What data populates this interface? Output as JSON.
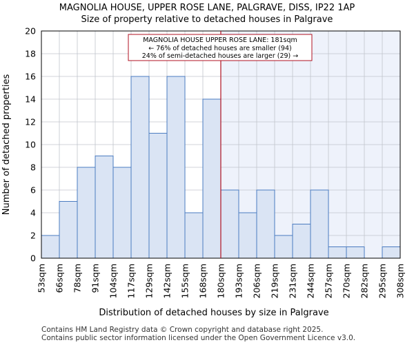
{
  "chart_data": {
    "type": "bar",
    "title": "MAGNOLIA HOUSE, UPPER ROSE LANE, PALGRAVE, DISS, IP22 1AP",
    "subtitle": "Size of property relative to detached houses in Palgrave",
    "xlabel": "Distribution of detached houses by size in Palgrave",
    "ylabel": "Number of detached properties",
    "bin_edges": [
      53,
      66,
      78,
      91,
      104,
      117,
      129,
      142,
      155,
      168,
      180,
      193,
      206,
      219,
      231,
      244,
      257,
      270,
      282,
      295,
      308
    ],
    "tick_labels": [
      "53sqm",
      "66sqm",
      "78sqm",
      "91sqm",
      "104sqm",
      "117sqm",
      "129sqm",
      "142sqm",
      "155sqm",
      "168sqm",
      "180sqm",
      "193sqm",
      "206sqm",
      "219sqm",
      "231sqm",
      "244sqm",
      "257sqm",
      "270sqm",
      "282sqm",
      "295sqm",
      "308sqm"
    ],
    "values": [
      2,
      5,
      8,
      9,
      8,
      16,
      11,
      16,
      4,
      14,
      6,
      4,
      6,
      2,
      3,
      6,
      1,
      1,
      0,
      1
    ],
    "yticks": [
      0,
      2,
      4,
      6,
      8,
      10,
      12,
      14,
      16,
      18,
      20
    ],
    "ylim": [
      0,
      20
    ],
    "marker": {
      "value_index": 10,
      "line1": "MAGNOLIA HOUSE UPPER ROSE LANE: 181sqm",
      "line2": "← 76% of detached houses are smaller (94)",
      "line3": "24% of semi-detached houses are larger (29) →"
    },
    "colors": {
      "bar_fill": "#dae4f4",
      "bar_edge": "#4a7bc0",
      "marker_line": "#b01020",
      "shade": "#eef2fb",
      "grid": "#c0c4cc"
    }
  },
  "footer": {
    "line1": "Contains HM Land Registry data © Crown copyright and database right 2025.",
    "line2": "Contains public sector information licensed under the Open Government Licence v3.0."
  }
}
